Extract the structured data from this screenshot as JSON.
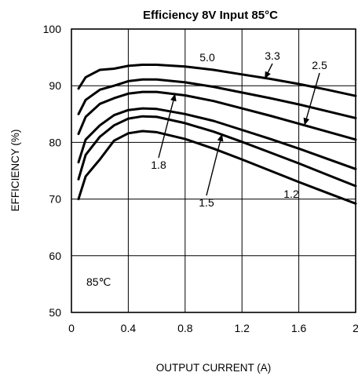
{
  "chart_data": {
    "type": "line",
    "title": "Efficiency 8V Input 85°C",
    "xlabel": "OUTPUT CURRENT (A)",
    "ylabel": "EFFICIENCY (%)",
    "xlim": [
      0,
      2
    ],
    "ylim": [
      50,
      100
    ],
    "xticks": [
      "0",
      "0.4",
      "0.8",
      "1.2",
      "1.6",
      "2"
    ],
    "yticks": [
      "50",
      "60",
      "70",
      "80",
      "90",
      "100"
    ],
    "grid": true,
    "annotation": "85℃",
    "series": [
      {
        "name": "5.0",
        "x": [
          0.05,
          0.1,
          0.2,
          0.3,
          0.4,
          0.5,
          0.6,
          0.8,
          1.0,
          1.2,
          1.4,
          1.6,
          1.8,
          2.0
        ],
        "y": [
          89.5,
          91.5,
          92.8,
          93.0,
          93.5,
          93.7,
          93.7,
          93.4,
          92.8,
          92.0,
          91.2,
          90.3,
          89.3,
          88.2
        ]
      },
      {
        "name": "3.3",
        "x": [
          0.05,
          0.1,
          0.2,
          0.3,
          0.4,
          0.5,
          0.6,
          0.8,
          1.0,
          1.2,
          1.4,
          1.6,
          1.8,
          2.0
        ],
        "y": [
          85.0,
          87.5,
          89.3,
          90.0,
          90.8,
          91.1,
          91.1,
          90.6,
          89.8,
          88.8,
          87.8,
          86.7,
          85.5,
          84.3
        ]
      },
      {
        "name": "2.5",
        "x": [
          0.05,
          0.1,
          0.2,
          0.3,
          0.4,
          0.5,
          0.6,
          0.8,
          1.0,
          1.2,
          1.4,
          1.6,
          1.8,
          2.0
        ],
        "y": [
          81.5,
          84.5,
          86.8,
          87.8,
          88.6,
          88.9,
          88.9,
          88.3,
          87.3,
          86.0,
          84.7,
          83.3,
          81.9,
          80.5
        ]
      },
      {
        "name": "1.8",
        "x": [
          0.05,
          0.1,
          0.2,
          0.3,
          0.4,
          0.5,
          0.6,
          0.8,
          1.0,
          1.2,
          1.4,
          1.6,
          1.8,
          2.0
        ],
        "y": [
          76.5,
          80.5,
          83.0,
          84.8,
          85.7,
          86.0,
          85.9,
          85.0,
          83.8,
          82.2,
          80.6,
          78.9,
          77.1,
          75.3
        ]
      },
      {
        "name": "1.5",
        "x": [
          0.05,
          0.1,
          0.2,
          0.3,
          0.4,
          0.5,
          0.6,
          0.8,
          1.0,
          1.2,
          1.4,
          1.6,
          1.8,
          2.0
        ],
        "y": [
          73.5,
          77.8,
          81.0,
          83.0,
          84.2,
          84.6,
          84.5,
          83.4,
          81.9,
          80.1,
          78.2,
          76.3,
          74.3,
          72.3
        ]
      },
      {
        "name": "1.2",
        "x": [
          0.05,
          0.1,
          0.2,
          0.3,
          0.4,
          0.5,
          0.6,
          0.8,
          1.0,
          1.2,
          1.4,
          1.6,
          1.8,
          2.0
        ],
        "y": [
          70.0,
          74.0,
          77.0,
          80.3,
          81.6,
          82.0,
          81.8,
          80.6,
          78.9,
          77.0,
          75.0,
          73.0,
          71.1,
          69.2
        ]
      }
    ]
  }
}
